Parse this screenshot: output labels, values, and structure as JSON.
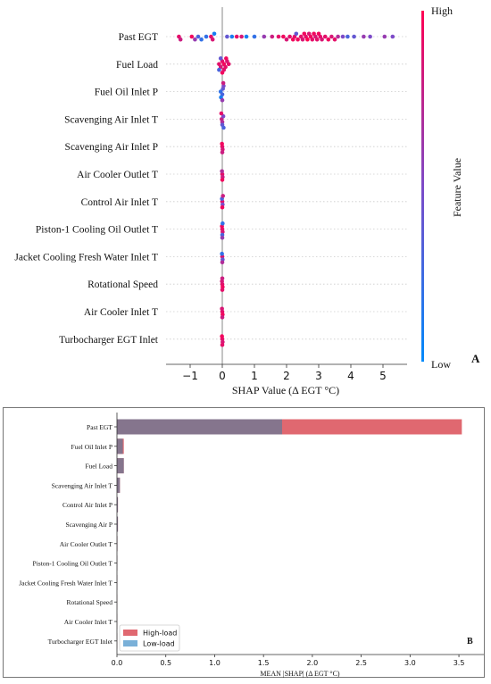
{
  "chart_data": [
    {
      "type": "scatter",
      "panel_label": "A",
      "xlabel": "SHAP Value (Δ EGT °C)",
      "xlim": [
        -1.75,
        5.75
      ],
      "xticks": [
        -1,
        0,
        1,
        2,
        3,
        4,
        5
      ],
      "colorbar": {
        "title": "Feature Value",
        "high_label": "High",
        "low_label": "Low",
        "high_color": "#ff0052",
        "low_color": "#008afb"
      },
      "features": [
        {
          "name": "Past EGT",
          "points": [
            [
              -1.35,
              0.9
            ],
            [
              -1.3,
              0.8
            ],
            [
              -0.95,
              0.95
            ],
            [
              -0.85,
              0.6
            ],
            [
              -0.75,
              0.3
            ],
            [
              -0.65,
              0.2
            ],
            [
              -0.5,
              0.2
            ],
            [
              -0.35,
              0.9
            ],
            [
              -0.3,
              0.85
            ],
            [
              -0.25,
              0.1
            ],
            [
              0.15,
              0.4
            ],
            [
              0.3,
              0.1
            ],
            [
              0.45,
              0.9
            ],
            [
              0.6,
              0.85
            ],
            [
              0.75,
              0.1
            ],
            [
              1.0,
              0.2
            ],
            [
              1.3,
              0.6
            ],
            [
              1.55,
              0.8
            ],
            [
              1.75,
              0.9
            ],
            [
              1.9,
              0.95
            ],
            [
              2.0,
              0.85
            ],
            [
              2.1,
              0.9
            ],
            [
              2.2,
              0.95
            ],
            [
              2.25,
              0.9
            ],
            [
              2.3,
              0.4
            ],
            [
              2.35,
              0.95
            ],
            [
              2.45,
              0.9
            ],
            [
              2.5,
              0.85
            ],
            [
              2.55,
              0.95
            ],
            [
              2.6,
              0.9
            ],
            [
              2.65,
              1.0
            ],
            [
              2.7,
              0.85
            ],
            [
              2.75,
              0.95
            ],
            [
              2.8,
              0.9
            ],
            [
              2.85,
              0.95
            ],
            [
              2.9,
              0.85
            ],
            [
              2.95,
              0.9
            ],
            [
              3.0,
              0.95
            ],
            [
              3.05,
              0.9
            ],
            [
              3.1,
              0.85
            ],
            [
              3.2,
              0.9
            ],
            [
              3.3,
              0.95
            ],
            [
              3.4,
              0.85
            ],
            [
              3.5,
              0.9
            ],
            [
              3.6,
              0.7
            ],
            [
              3.75,
              0.5
            ],
            [
              3.9,
              0.3
            ],
            [
              4.1,
              0.4
            ],
            [
              4.4,
              0.6
            ],
            [
              4.6,
              0.5
            ],
            [
              5.05,
              0.6
            ],
            [
              5.3,
              0.5
            ]
          ]
        },
        {
          "name": "Fuel Load",
          "points": [
            [
              -0.1,
              0.9
            ],
            [
              -0.05,
              0.85
            ],
            [
              0.0,
              0.9
            ],
            [
              0.05,
              0.95
            ],
            [
              0.1,
              0.9
            ],
            [
              0.15,
              0.85
            ],
            [
              0.2,
              0.9
            ],
            [
              -0.1,
              0.3
            ],
            [
              -0.05,
              0.4
            ],
            [
              0.0,
              0.95
            ],
            [
              0.05,
              0.9
            ],
            [
              0.12,
              0.95
            ]
          ]
        },
        {
          "name": "Fuel Oil Inlet P",
          "points": [
            [
              -0.05,
              0.2
            ],
            [
              0.0,
              0.3
            ],
            [
              0.02,
              0.4
            ],
            [
              -0.04,
              0.1
            ],
            [
              0.04,
              0.5
            ],
            [
              0.0,
              0.6
            ],
            [
              0.03,
              0.8
            ]
          ]
        },
        {
          "name": "Scavenging Air Inlet T",
          "points": [
            [
              -0.02,
              0.8
            ],
            [
              0.0,
              0.7
            ],
            [
              0.03,
              0.5
            ],
            [
              0.0,
              0.4
            ],
            [
              -0.03,
              0.9
            ],
            [
              0.04,
              0.3
            ]
          ]
        },
        {
          "name": "Scavenging Air Inlet P",
          "points": [
            [
              0.0,
              0.9
            ],
            [
              0.01,
              0.85
            ],
            [
              -0.01,
              0.95
            ],
            [
              0.0,
              0.8
            ]
          ]
        },
        {
          "name": "Air Cooler Outlet T",
          "points": [
            [
              0.0,
              0.9
            ],
            [
              0.01,
              0.8
            ],
            [
              -0.01,
              0.7
            ],
            [
              0.0,
              0.95
            ]
          ]
        },
        {
          "name": "Control Air Inlet T",
          "points": [
            [
              0.0,
              0.9
            ],
            [
              0.01,
              0.5
            ],
            [
              -0.01,
              0.3
            ],
            [
              0.0,
              0.95
            ],
            [
              0.02,
              0.8
            ]
          ]
        },
        {
          "name": "Piston-1 Cooling Oil Outlet T",
          "points": [
            [
              0.0,
              0.9
            ],
            [
              0.01,
              0.85
            ],
            [
              -0.01,
              0.95
            ],
            [
              0.0,
              0.3
            ],
            [
              0.01,
              0.2
            ],
            [
              0.0,
              0.6
            ]
          ]
        },
        {
          "name": "Jacket Cooling Fresh Water Inlet T",
          "points": [
            [
              0.0,
              0.9
            ],
            [
              0.01,
              0.4
            ],
            [
              -0.01,
              0.2
            ],
            [
              0.0,
              0.7
            ]
          ]
        },
        {
          "name": "Rotational Speed",
          "points": [
            [
              0.0,
              0.9
            ],
            [
              0.01,
              0.95
            ],
            [
              -0.01,
              0.85
            ],
            [
              0.0,
              0.9
            ],
            [
              0.0,
              0.8
            ]
          ]
        },
        {
          "name": "Air Cooler Inlet T",
          "points": [
            [
              0.0,
              0.9
            ],
            [
              0.01,
              0.95
            ],
            [
              -0.01,
              0.85
            ],
            [
              0.0,
              0.8
            ]
          ]
        },
        {
          "name": "Turbocharger EGT Inlet",
          "points": [
            [
              0.0,
              0.9
            ],
            [
              0.01,
              0.85
            ],
            [
              -0.01,
              0.95
            ],
            [
              0.0,
              0.9
            ]
          ]
        }
      ]
    },
    {
      "type": "bar",
      "orientation": "horizontal",
      "panel_label": "B",
      "xlabel": "MEAN |SHAP| (Δ EGT °C)",
      "xlim": [
        0,
        3.6
      ],
      "xticks": [
        0.0,
        0.5,
        1.0,
        1.5,
        2.0,
        2.5,
        3.0,
        3.5
      ],
      "categories": [
        "Past EGT",
        "Fuel Oil Inlet P",
        "Fuel Load",
        "Scavenging Air Inlet T",
        "Control Air Inlet P",
        "Scavenging Air P",
        "Air Cooler Outlet T",
        "Piston-1 Cooling Oil Outlet T",
        "Jacket Cooling Fresh Water Inlet T",
        "Rotational Speed",
        "Air Cooler Inlet T",
        "Turbocharger EGT Inlet"
      ],
      "series": [
        {
          "name": "High-load",
          "color": "#e06870",
          "values": [
            3.53,
            0.07,
            0.07,
            0.03,
            0.01,
            0.01,
            0.005,
            0.003,
            0.003,
            0.002,
            0.002,
            0.002
          ]
        },
        {
          "name": "Low-load",
          "color": "#7ab0d8",
          "values": [
            1.69,
            0.06,
            0.07,
            0.03,
            0.01,
            0.01,
            0.005,
            0.003,
            0.003,
            0.002,
            0.002,
            0.002
          ]
        }
      ],
      "overlap_color": "#85758d",
      "legend_position": "bottom-left"
    }
  ]
}
